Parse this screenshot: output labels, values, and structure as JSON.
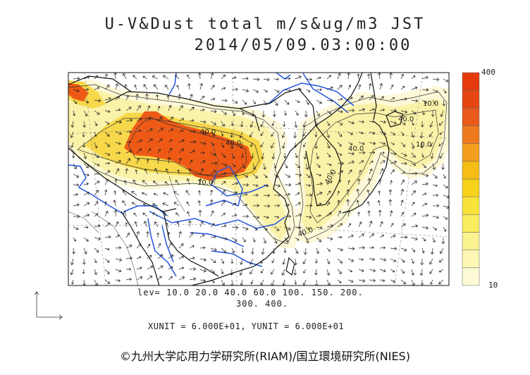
{
  "title": {
    "line1": "U-V&Dust total m/s&ug/m3 JST",
    "line2": "2014/05/09.03:00:00"
  },
  "levels_line1": "lev= 10.0 20.0 40.0 60.0 100. 150. 200.",
  "levels_line2": "300. 400.",
  "units_text": "XUNIT = 6.000E+01, YUNIT = 6.000E+01",
  "credit": "©九州大学応用力学研究所(RIAM)/国立環境研究所(NIES)",
  "colorbar": {
    "max_label": "400",
    "min_label": "10",
    "levels": [
      10,
      20,
      40,
      60,
      100,
      150,
      200,
      300,
      400
    ],
    "colors": [
      "#fdfbd6",
      "#fcf7b4",
      "#fbf290",
      "#f9ec5e",
      "#f8e33a",
      "#f7d21a",
      "#f6bd14",
      "#f39e1c",
      "#ef7a1e",
      "#ea5a1a",
      "#e64712",
      "#e43a0e"
    ]
  },
  "contour_labels": [
    "10.0",
    "40.0",
    "40.0",
    "40.0",
    "40.0",
    "10.0",
    "40.0",
    "10.0",
    "40.0"
  ],
  "colors": {
    "coast": "#111111",
    "river": "#2255dd",
    "dust_high": "#ee5a16",
    "dust_mid": "#f7d84a",
    "dust_low": "#faf2a8",
    "dust_faint": "#fdf9d8"
  }
}
